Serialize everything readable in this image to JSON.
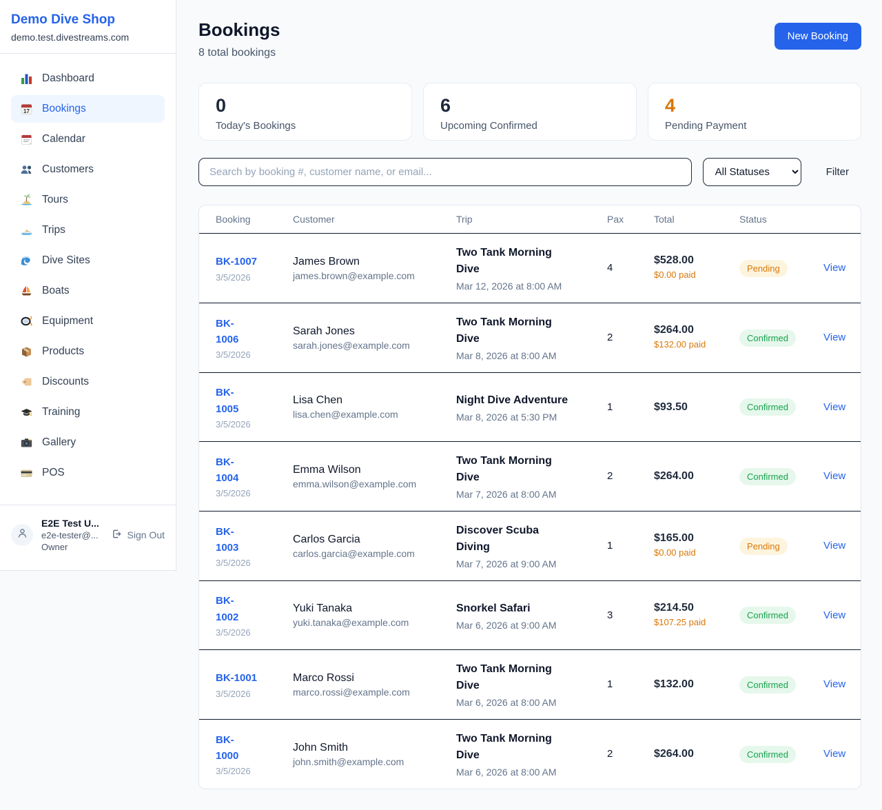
{
  "sidebar": {
    "brand": "Demo Dive Shop",
    "domain": "demo.test.divestreams.com",
    "items": [
      {
        "icon": "bar-chart-icon",
        "label": "Dashboard",
        "active": false
      },
      {
        "icon": "calendar-date-icon",
        "label": "Bookings",
        "active": true
      },
      {
        "icon": "tear-off-calendar-icon",
        "label": "Calendar",
        "active": false
      },
      {
        "icon": "users-icon",
        "label": "Customers",
        "active": false
      },
      {
        "icon": "island-icon",
        "label": "Tours",
        "active": false
      },
      {
        "icon": "speedboat-icon",
        "label": "Trips",
        "active": false
      },
      {
        "icon": "wave-icon",
        "label": "Dive Sites",
        "active": false
      },
      {
        "icon": "sailboat-icon",
        "label": "Boats",
        "active": false
      },
      {
        "icon": "diving-mask-icon",
        "label": "Equipment",
        "active": false
      },
      {
        "icon": "package-icon",
        "label": "Products",
        "active": false
      },
      {
        "icon": "tag-icon",
        "label": "Discounts",
        "active": false
      },
      {
        "icon": "graduation-cap-icon",
        "label": "Training",
        "active": false
      },
      {
        "icon": "camera-icon",
        "label": "Gallery",
        "active": false
      },
      {
        "icon": "credit-card-icon",
        "label": "POS",
        "active": false
      }
    ],
    "user": {
      "name": "E2E Test U...",
      "email": "e2e-tester@...",
      "role": "Owner",
      "sign_out_label": "Sign Out"
    }
  },
  "header": {
    "title": "Bookings",
    "subtitle": "8 total bookings",
    "new_booking_label": "New Booking"
  },
  "stats": [
    {
      "value": "0",
      "label": "Today's Bookings",
      "accent": false
    },
    {
      "value": "6",
      "label": "Upcoming Confirmed",
      "accent": false
    },
    {
      "value": "4",
      "label": "Pending Payment",
      "accent": true
    }
  ],
  "filters": {
    "search_placeholder": "Search by booking #, customer name, or email...",
    "status_selected": "All Statuses",
    "filter_label": "Filter"
  },
  "table": {
    "columns": [
      "Booking",
      "Customer",
      "Trip",
      "Pax",
      "Total",
      "Status"
    ],
    "view_label": "View",
    "rows": [
      {
        "id": "BK-1007",
        "booked_date": "3/5/2026",
        "customer": "James Brown",
        "email": "james.brown@example.com",
        "trip": "Two Tank Morning Dive",
        "trip_datetime": "Mar 12, 2026 at 8:00 AM",
        "pax": "4",
        "total": "$528.00",
        "paid": "$0.00 paid",
        "status": "Pending"
      },
      {
        "id": "BK-\n1006",
        "booked_date": "3/5/2026",
        "customer": "Sarah Jones",
        "email": "sarah.jones@example.com",
        "trip": "Two Tank Morning Dive",
        "trip_datetime": "Mar 8, 2026 at 8:00 AM",
        "pax": "2",
        "total": "$264.00",
        "paid": "$132.00 paid",
        "status": "Confirmed"
      },
      {
        "id": "BK-\n1005",
        "booked_date": "3/5/2026",
        "customer": "Lisa Chen",
        "email": "lisa.chen@example.com",
        "trip": "Night Dive Adventure",
        "trip_datetime": "Mar 8, 2026 at 5:30 PM",
        "pax": "1",
        "total": "$93.50",
        "paid": "",
        "status": "Confirmed"
      },
      {
        "id": "BK-\n1004",
        "booked_date": "3/5/2026",
        "customer": "Emma Wilson",
        "email": "emma.wilson@example.com",
        "trip": "Two Tank Morning Dive",
        "trip_datetime": "Mar 7, 2026 at 8:00 AM",
        "pax": "2",
        "total": "$264.00",
        "paid": "",
        "status": "Confirmed"
      },
      {
        "id": "BK-\n1003",
        "booked_date": "3/5/2026",
        "customer": "Carlos Garcia",
        "email": "carlos.garcia@example.com",
        "trip": "Discover Scuba Diving",
        "trip_datetime": "Mar 7, 2026 at 9:00 AM",
        "pax": "1",
        "total": "$165.00",
        "paid": "$0.00 paid",
        "status": "Pending"
      },
      {
        "id": "BK-\n1002",
        "booked_date": "3/5/2026",
        "customer": "Yuki Tanaka",
        "email": "yuki.tanaka@example.com",
        "trip": "Snorkel Safari",
        "trip_datetime": "Mar 6, 2026 at 9:00 AM",
        "pax": "3",
        "total": "$214.50",
        "paid": "$107.25 paid",
        "status": "Confirmed"
      },
      {
        "id": "BK-1001",
        "booked_date": "3/5/2026",
        "customer": "Marco Rossi",
        "email": "marco.rossi@example.com",
        "trip": "Two Tank Morning Dive",
        "trip_datetime": "Mar 6, 2026 at 8:00 AM",
        "pax": "1",
        "total": "$132.00",
        "paid": "",
        "status": "Confirmed"
      },
      {
        "id": "BK-\n1000",
        "booked_date": "3/5/2026",
        "customer": "John Smith",
        "email": "john.smith@example.com",
        "trip": "Two Tank Morning Dive",
        "trip_datetime": "Mar 6, 2026 at 8:00 AM",
        "pax": "2",
        "total": "$264.00",
        "paid": "",
        "status": "Confirmed"
      }
    ]
  },
  "colors": {
    "accent_blue": "#2563eb",
    "pending_orange": "#d97706",
    "confirmed_green": "#16a34a",
    "page_background": "#f8fafc"
  }
}
